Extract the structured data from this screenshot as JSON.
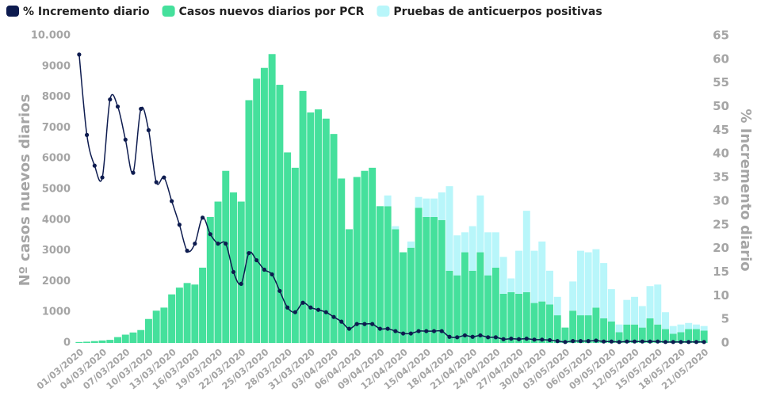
{
  "chart_data": {
    "type": "bar",
    "stacked": true,
    "y_label": "Nº casos nuevos diarios",
    "y2_label": "% Incremento diario",
    "categories": [
      "01/03/2020",
      null,
      null,
      "04/03/2020",
      null,
      null,
      "07/03/2020",
      null,
      null,
      "10/03/2020",
      null,
      null,
      "13/03/2020",
      null,
      null,
      "16/03/2020",
      null,
      null,
      "19/03/2020",
      null,
      null,
      "22/03/2020",
      null,
      null,
      "25/03/2020",
      null,
      null,
      "28/03/2020",
      null,
      null,
      "31/03/2020",
      null,
      null,
      "03/04/2020",
      null,
      null,
      "06/04/2020",
      null,
      null,
      "09/04/2020",
      null,
      null,
      "12/04/2020",
      null,
      null,
      "15/04/2020",
      null,
      null,
      "18/04/2020",
      null,
      null,
      "21/04/2020",
      null,
      null,
      "24/04/2020",
      null,
      null,
      "27/04/2020",
      null,
      null,
      "30/04/2020",
      null,
      null,
      "03/05/2020",
      null,
      null,
      "06/05/2020",
      null,
      null,
      "09/05/2020",
      null,
      null,
      "12/05/2020",
      null,
      null,
      "15/05/2020",
      null,
      null,
      "18/05/2020",
      null,
      null,
      "21/05/2020"
    ],
    "series": [
      {
        "name": "% Incremento diario",
        "color": "#0d1b4f",
        "type": "line",
        "axis": "y2",
        "values": [
          61,
          44,
          37.5,
          35,
          51.5,
          50,
          43,
          36,
          49.5,
          45,
          34,
          35,
          30,
          25,
          19.5,
          21,
          26.5,
          23,
          21,
          21,
          15,
          12.5,
          19,
          17.5,
          15.5,
          14.5,
          11,
          7.5,
          6.5,
          8.5,
          7.5,
          7,
          6.5,
          5.5,
          4.5,
          3,
          4,
          4,
          4,
          3,
          3,
          2.5,
          2,
          2,
          2.5,
          2.5,
          2.5,
          2.5,
          1.3,
          1.2,
          1.6,
          1.3,
          1.6,
          1.2,
          1.2,
          0.8,
          0.9,
          0.8,
          0.9,
          0.7,
          0.7,
          0.6,
          0.4,
          0.2,
          0.4,
          0.4,
          0.4,
          0.5,
          0.3,
          0.3,
          0.2,
          0.3,
          0.3,
          0.3,
          0.3,
          0.3,
          0.2,
          0.2,
          0.2,
          0.2,
          0.2,
          0.2
        ]
      },
      {
        "name": "Casos nuevos diarios por PCR",
        "color": "#45e09c",
        "type": "bar",
        "values": [
          30,
          40,
          60,
          80,
          100,
          190,
          270,
          340,
          420,
          780,
          1050,
          1150,
          1580,
          1800,
          1950,
          1900,
          2450,
          4100,
          4600,
          5600,
          4900,
          4600,
          7900,
          8600,
          8950,
          9400,
          8400,
          6200,
          5700,
          8200,
          7500,
          7600,
          7300,
          6800,
          5350,
          3700,
          5400,
          5600,
          5700,
          4450,
          4450,
          3700,
          2950,
          3100,
          4400,
          4100,
          4100,
          4000,
          2350,
          2200,
          2950,
          2350,
          2950,
          2200,
          2450,
          1600,
          1650,
          1600,
          1650,
          1300,
          1350,
          1250,
          900,
          500,
          1050,
          900,
          900,
          1150,
          800,
          700,
          350,
          600,
          600,
          500,
          800,
          600,
          450,
          300,
          350,
          450,
          450,
          400
        ]
      },
      {
        "name": "Pruebas de anticuerpos positivas",
        "color": "#b8f6fa",
        "type": "bar",
        "values": [
          0,
          0,
          0,
          0,
          0,
          0,
          0,
          0,
          0,
          0,
          0,
          0,
          0,
          0,
          0,
          0,
          0,
          0,
          0,
          0,
          0,
          0,
          0,
          0,
          0,
          0,
          0,
          0,
          0,
          0,
          0,
          0,
          0,
          0,
          0,
          0,
          0,
          0,
          0,
          0,
          350,
          100,
          0,
          200,
          350,
          600,
          600,
          900,
          2750,
          1300,
          650,
          1450,
          1850,
          1400,
          1150,
          1200,
          450,
          1400,
          2650,
          1700,
          1950,
          1100,
          600,
          0,
          950,
          2100,
          2050,
          1900,
          1800,
          1050,
          250,
          800,
          900,
          700,
          1050,
          1300,
          550,
          250,
          250,
          200,
          150,
          150
        ]
      }
    ],
    "ylim": [
      0,
      10000
    ],
    "yticks": [
      0,
      1000,
      2000,
      3000,
      4000,
      5000,
      6000,
      7000,
      8000,
      9000,
      {
        "value": 10000,
        "label": "10.000"
      }
    ],
    "y2lim": [
      0,
      65
    ],
    "y2ticks": [
      0,
      5,
      10,
      15,
      20,
      25,
      30,
      35,
      40,
      45,
      50,
      55,
      60,
      65
    ],
    "legend": "top-left",
    "grid": false
  }
}
